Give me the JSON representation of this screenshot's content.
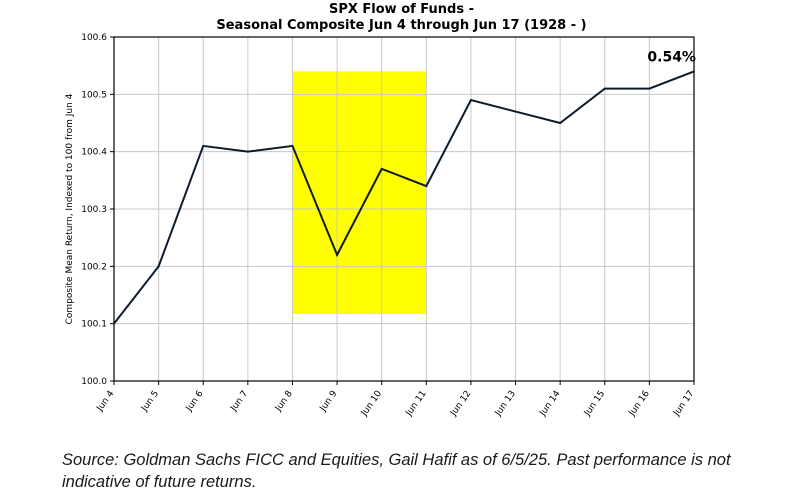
{
  "chart_data": {
    "type": "line",
    "title": "SPX Flow of Funds -",
    "subtitle": "Seasonal Composite Jun 4 through Jun 17 (1928 - )",
    "xlabel": "",
    "ylabel": "Composite Mean Return, Indexed to 100 from Jun 4",
    "categories": [
      "Jun 4",
      "Jun 5",
      "Jun 6",
      "Jun 7",
      "Jun 8",
      "Jun 9",
      "Jun 10",
      "Jun 11",
      "Jun 12",
      "Jun 13",
      "Jun 14",
      "Jun 15",
      "Jun 16",
      "Jun 17"
    ],
    "series": [
      {
        "values": [
          100.1,
          100.2,
          100.41,
          100.4,
          100.41,
          100.22,
          100.37,
          100.34,
          100.49,
          100.47,
          100.45,
          100.51,
          100.51,
          100.54
        ],
        "color": "#0d1b2a"
      }
    ],
    "ylim": [
      100.0,
      100.6
    ],
    "yticks": [
      100.0,
      100.1,
      100.2,
      100.3,
      100.4,
      100.5,
      100.6
    ],
    "ytick_labels": [
      "100.0",
      "100.1",
      "100.2",
      "100.3",
      "100.4",
      "100.5",
      "100.6"
    ],
    "grid": true,
    "highlight": {
      "x_start": "Jun 8",
      "x_end": "Jun 11",
      "y_start": 100.117,
      "y_end": 100.54,
      "color": "#ffff00"
    },
    "annotation": {
      "text": "0.54%",
      "x": "Jun 16.5",
      "y": 100.54
    }
  },
  "source_note": "Source: Goldman Sachs FICC and Equities, Gail Hafif as of 6/5/25. Past performance is not indicative of future returns."
}
